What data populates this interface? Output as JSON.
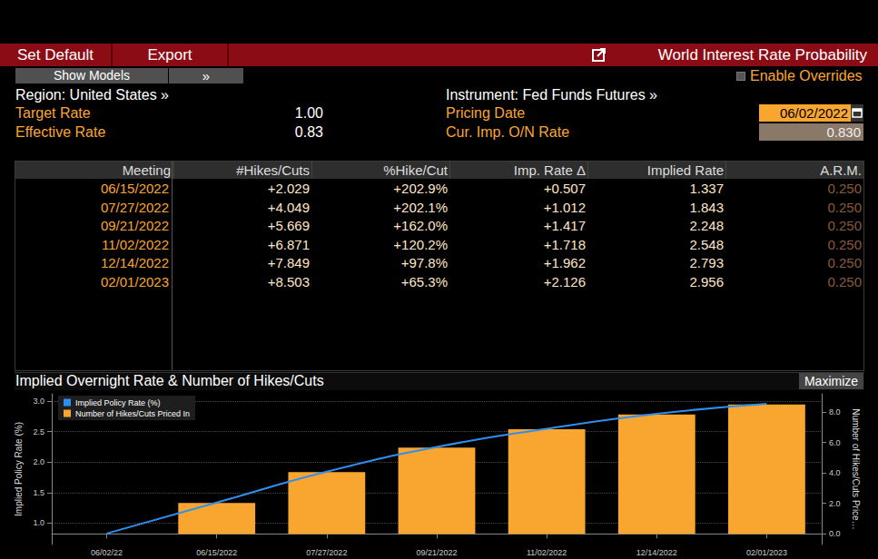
{
  "header": {
    "buttons": [
      "Set Default",
      "Export"
    ],
    "title": "World Interest Rate Probability",
    "show_models": "Show Models",
    "more": "»",
    "overrides": "Enable Overrides"
  },
  "region": "Region: United States »",
  "instrument": "Instrument: Fed Funds Futures »",
  "fields": [
    {
      "label": "Target Rate",
      "value": "1.00"
    },
    {
      "label": "Effective Rate",
      "value": "0.83"
    },
    {
      "label": "Pricing Date",
      "value": "06/02/2022"
    },
    {
      "label": "Cur. Imp. O/N Rate",
      "value": "0.830"
    }
  ],
  "table": {
    "columns": [
      "Meeting",
      "#Hikes/Cuts",
      "%Hike/Cut",
      "Imp. Rate Δ",
      "Implied Rate",
      "A.R.M."
    ],
    "rows": [
      [
        "06/15/2022",
        "+2.029",
        "+202.9%",
        "+0.507",
        "1.337",
        "0.250"
      ],
      [
        "07/27/2022",
        "+4.049",
        "+202.1%",
        "+1.012",
        "1.843",
        "0.250"
      ],
      [
        "09/21/2022",
        "+5.669",
        "+162.0%",
        "+1.417",
        "2.248",
        "0.250"
      ],
      [
        "11/02/2022",
        "+6.871",
        "+120.2%",
        "+1.718",
        "2.548",
        "0.250"
      ],
      [
        "12/14/2022",
        "+7.849",
        "+97.8%",
        "+1.962",
        "2.793",
        "0.250"
      ],
      [
        "02/01/2023",
        "+8.503",
        "+65.3%",
        "+2.126",
        "2.956",
        "0.250"
      ]
    ]
  },
  "chart_panel": {
    "title": "Implied Overnight Rate & Number of Hikes/Cuts",
    "button": "Maximize"
  },
  "chart_data": {
    "type": "bar",
    "categories": [
      "06/02/22",
      "06/15/2022",
      "07/27/2022",
      "09/21/2022",
      "11/02/2022",
      "12/14/2022",
      "02/01/2023"
    ],
    "series": [
      {
        "name": "Implied Policy Rate (%)",
        "type": "line",
        "color": "#2f8ff0",
        "values": [
          0.83,
          1.337,
          1.843,
          2.248,
          2.548,
          2.793,
          2.956
        ]
      },
      {
        "name": "Number of Hikes/Cuts Priced In",
        "type": "bar",
        "color": "#f9a630",
        "axis": "y2",
        "values": [
          0,
          2.029,
          4.049,
          5.669,
          6.871,
          7.849,
          8.503
        ]
      }
    ],
    "y_label": "Implied Policy Rate (%)",
    "y2_label": "Number of Hikes/Cuts Price…",
    "ylim": [
      0.65,
      3.12
    ],
    "yticks": [
      {
        "value": 1,
        "label": "1.0"
      },
      {
        "value": 1.5,
        "label": "1.5"
      },
      {
        "value": 2,
        "label": "2.0"
      },
      {
        "value": 2.5,
        "label": "2.5"
      },
      {
        "value": 3,
        "label": "3.0"
      }
    ],
    "y2lim": [
      -0.7,
      9.2
    ],
    "y2ticks": [
      {
        "value": 0,
        "label": "0.0"
      },
      {
        "value": 2,
        "label": "2.0"
      },
      {
        "value": 4,
        "label": "4.0"
      },
      {
        "value": 6,
        "label": "6.0"
      },
      {
        "value": 8,
        "label": "8.0"
      }
    ],
    "grid": true,
    "legend": "upper left"
  }
}
